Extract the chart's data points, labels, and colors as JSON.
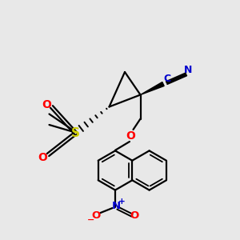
{
  "bg_color": "#e8e8e8",
  "bond_color": "#000000",
  "cn_color": "#0000cd",
  "o_color": "#ff0000",
  "s_color": "#cccc00",
  "n_color": "#0000cd",
  "no_color": "#ff0000",
  "figsize": [
    3.0,
    3.0
  ],
  "dpi": 100,
  "xlim": [
    0,
    10
  ],
  "ylim": [
    0,
    10
  ]
}
